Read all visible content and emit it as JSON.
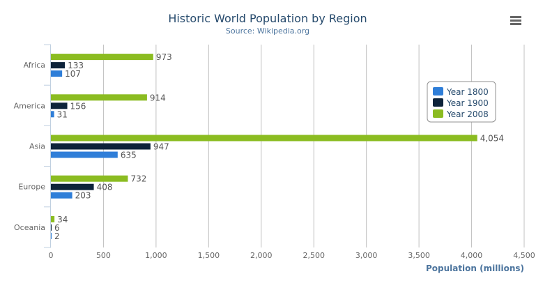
{
  "chart_data": {
    "type": "bar",
    "orientation": "horizontal",
    "title": "Historic World Population by Region",
    "subtitle": "Source: Wikipedia.org",
    "xlabel": "Population (millions)",
    "ylabel": "",
    "categories": [
      "Africa",
      "America",
      "Asia",
      "Europe",
      "Oceania"
    ],
    "series": [
      {
        "name": "Year 1800",
        "color": "#2f7ed8",
        "values": [
          107,
          31,
          635,
          203,
          2
        ]
      },
      {
        "name": "Year 1900",
        "color": "#0d233a",
        "values": [
          133,
          156,
          947,
          408,
          6
        ]
      },
      {
        "name": "Year 2008",
        "color": "#8bbc21",
        "values": [
          973,
          914,
          4054,
          732,
          34
        ]
      }
    ],
    "value_labels": {
      "Year 1800": [
        "107",
        "31",
        "635",
        "203",
        "2"
      ],
      "Year 1900": [
        "133",
        "156",
        "947",
        "408",
        "6"
      ],
      "Year 2008": [
        "973",
        "914",
        "4,054",
        "732",
        "34"
      ]
    },
    "xlim": [
      0,
      4500
    ],
    "xticks": [
      "0",
      "500",
      "1,000",
      "1,500",
      "2,000",
      "2,500",
      "3,000",
      "3,500",
      "4,000",
      "4,500"
    ],
    "grid": true,
    "legend_placement": "top-right"
  },
  "menu_icon": "hamburger-menu-icon"
}
